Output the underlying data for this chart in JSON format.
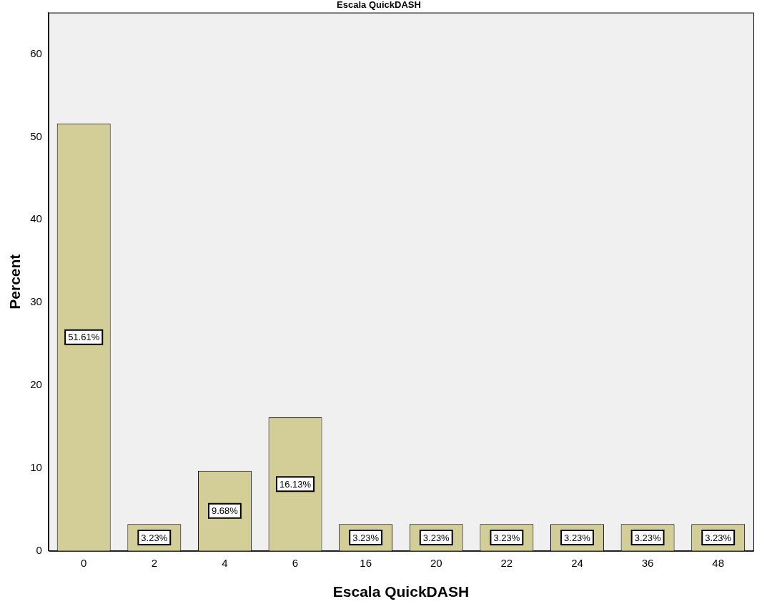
{
  "chart_data": {
    "type": "bar",
    "title": "Escala QuickDASH",
    "xlabel": "Escala QuickDASH",
    "ylabel": "Percent",
    "categories": [
      "0",
      "2",
      "4",
      "6",
      "16",
      "20",
      "22",
      "24",
      "36",
      "48"
    ],
    "values": [
      51.61,
      3.23,
      9.68,
      16.13,
      3.23,
      3.23,
      3.23,
      3.23,
      3.23,
      3.23
    ],
    "value_labels": [
      "51.61%",
      "3.23%",
      "9.68%",
      "16.13%",
      "3.23%",
      "3.23%",
      "3.23%",
      "3.23%",
      "3.23%",
      "3.23%"
    ],
    "color": "#d3ce97",
    "ylim": [
      0,
      65
    ],
    "yticks": [
      0,
      10,
      20,
      30,
      40,
      50,
      60
    ],
    "grid": false,
    "legend": false
  }
}
